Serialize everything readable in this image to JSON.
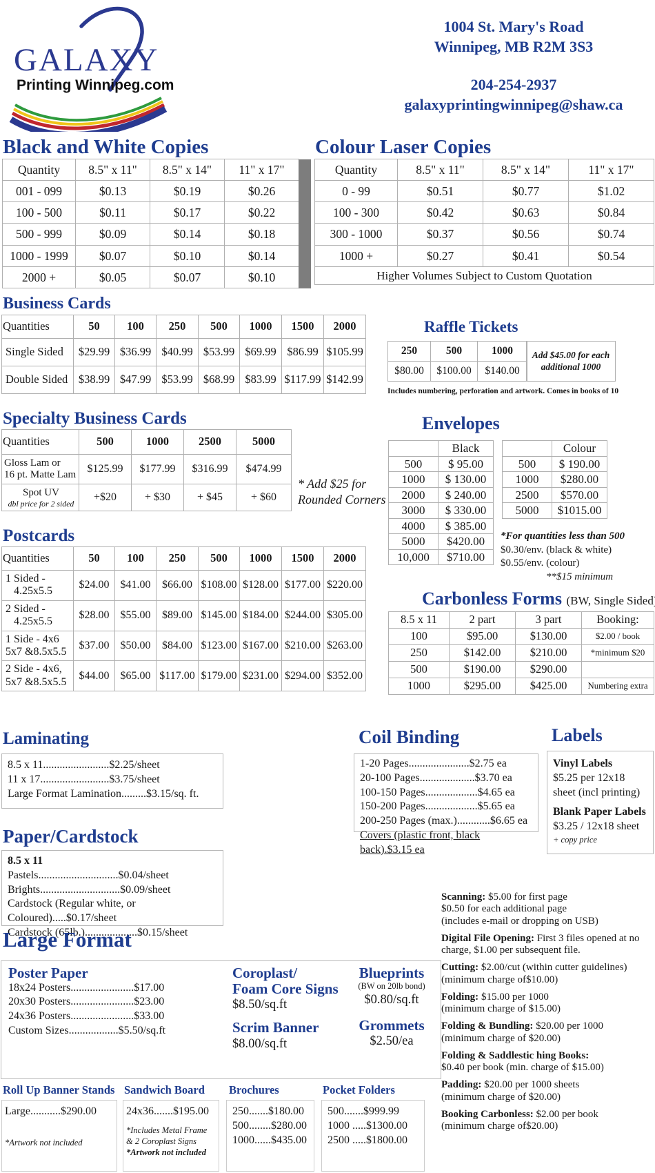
{
  "colors": {
    "accent": "#1f3d8f",
    "logo_blue": "#2b3990",
    "divider_gray": "#7d7d7d"
  },
  "header": {
    "logo_line1": "GALAXY",
    "logo_line2": "Printing Winnipeg.com",
    "address1": "1004 St. Mary's Road",
    "address2": "Winnipeg, MB R2M 3S3",
    "phone": "204-254-2937",
    "email": "galaxyprintingwinnipeg@shaw.ca"
  },
  "bw_copies": {
    "title": "Black and White Copies",
    "rows": [
      [
        "Quantity",
        "8.5\" x 11\"",
        "8.5\" x 14\"",
        "11\" x 17\""
      ],
      [
        "001 - 099",
        "$0.13",
        "$0.19",
        "$0.26"
      ],
      [
        "100 - 500",
        "$0.11",
        "$0.17",
        "$0.22"
      ],
      [
        "500 - 999",
        "$0.09",
        "$0.14",
        "$0.18"
      ],
      [
        "1000 - 1999",
        "$0.07",
        "$0.10",
        "$0.14"
      ],
      [
        "2000 +",
        "$0.05",
        "$0.07",
        "$0.10"
      ]
    ]
  },
  "colour_copies": {
    "title": "Colour Laser Copies",
    "rows": [
      [
        "Quantity",
        "8.5\" x 11\"",
        "8.5\" x 14\"",
        "11\" x 17\""
      ],
      [
        "0 - 99",
        "$0.51",
        "$0.77",
        "$1.02"
      ],
      [
        "100 - 300",
        "$0.42",
        "$0.63",
        "$0.84"
      ],
      [
        "300 - 1000",
        "$0.37",
        "$0.56",
        "$0.74"
      ],
      [
        "1000 +",
        "$0.27",
        "$0.41",
        "$0.54"
      ]
    ],
    "footer": "Higher Volumes Subject to Custom Quotation"
  },
  "business_cards": {
    "title": "Business Cards",
    "rows": [
      [
        "Quantities",
        "50",
        "100",
        "250",
        "500",
        "1000",
        "1500",
        "2000"
      ],
      [
        "Single Sided",
        "$29.99",
        "$36.99",
        "$40.99",
        "$53.99",
        "$69.99",
        "$86.99",
        "$105.99"
      ],
      [
        "Double Sided",
        "$38.99",
        "$47.99",
        "$53.99",
        "$68.99",
        "$83.99",
        "$117.99",
        "$142.99"
      ]
    ]
  },
  "raffle_tickets": {
    "title": "Raffle Tickets",
    "rows": [
      [
        "250",
        "500",
        "1000"
      ],
      [
        "$80.00",
        "$100.00",
        "$140.00"
      ]
    ],
    "side_note_line1": "Add $45.00 for each",
    "side_note_line2": "additional 1000",
    "foot_note": "Includes numbering, perforation and artwork. Comes in books of 10"
  },
  "specialty_cards": {
    "title": "Specialty Business Cards",
    "rows": [
      [
        "Quantities",
        "500",
        "1000",
        "2500",
        "5000"
      ],
      [
        {
          "lines": [
            "Gloss Lam or",
            "16 pt. Matte Lam"
          ]
        },
        "$125.99",
        "$177.99",
        "$316.99",
        "$474.99"
      ],
      [
        {
          "lines": [
            "Spot UV",
            "dbl price for 2 sided"
          ],
          "italicLast": true,
          "align": "center"
        },
        "+$20",
        "+ $30",
        "+ $45",
        "+ $60"
      ]
    ],
    "note_line1": "* Add $25 for",
    "note_line2": "Rounded Corners"
  },
  "envelopes": {
    "title": "Envelopes",
    "black_rows": [
      [
        "",
        "Black"
      ],
      [
        "500",
        "$ 95.00"
      ],
      [
        "1000",
        "$ 130.00"
      ],
      [
        "2000",
        "$ 240.00"
      ],
      [
        "3000",
        "$ 330.00"
      ],
      [
        "4000",
        "$ 385.00"
      ],
      [
        "5000",
        "$420.00"
      ],
      [
        "10,000",
        "$710.00"
      ]
    ],
    "colour_rows": [
      [
        "",
        "Colour"
      ],
      [
        "500",
        "$ 190.00"
      ],
      [
        "1000",
        "$280.00"
      ],
      [
        "2500",
        "$570.00"
      ],
      [
        "5000",
        "$1015.00"
      ]
    ],
    "notes": [
      {
        "text": "*For quantities less than 500",
        "cls": "bi"
      },
      {
        "text": "$0.30/env. (black & white)"
      },
      {
        "text": "$0.55/env. (colour)"
      },
      {
        "text": "**$15 minimum",
        "cls": "i ind"
      }
    ]
  },
  "postcards": {
    "title": "Postcards",
    "rows": [
      [
        "Quantities",
        "50",
        "100",
        "250",
        "500",
        "1000",
        "1500",
        "2000"
      ],
      [
        {
          "lines": [
            "1 Sided -",
            "   4.25x5.5"
          ]
        },
        "$24.00",
        "$41.00",
        "$66.00",
        "$108.00",
        "$128.00",
        "$177.00",
        "$220.00"
      ],
      [
        {
          "lines": [
            "2 Sided -",
            "   4.25x5.5"
          ]
        },
        "$28.00",
        "$55.00",
        "$89.00",
        "$145.00",
        "$184.00",
        "$244.00",
        "$305.00"
      ],
      [
        {
          "lines": [
            "1 Side - 4x6",
            "5x7 &8.5x5.5"
          ]
        },
        "$37.00",
        "$50.00",
        "$84.00",
        "$123.00",
        "$167.00",
        "$210.00",
        "$263.00"
      ],
      [
        {
          "lines": [
            "2 Side - 4x6,",
            "5x7 &8.5x5.5"
          ]
        },
        "$44.00",
        "$65.00",
        "$117.00",
        "$179.00",
        "$231.00",
        "$294.00",
        "$352.00"
      ]
    ]
  },
  "carbonless": {
    "title": "Carbonless Forms",
    "subtitle": "(BW, Single Sided)",
    "rows": [
      [
        "8.5 x 11",
        "2 part",
        "3 part",
        "Booking:"
      ],
      [
        "100",
        "$95.00",
        "$130.00",
        "$2.00 / book"
      ],
      [
        "250",
        "$142.00",
        "$210.00",
        "*minimum $20"
      ],
      [
        "500",
        "$190.00",
        "$290.00",
        ""
      ],
      [
        "1000",
        "$295.00",
        "$425.00",
        "Numbering extra"
      ]
    ]
  },
  "laminating": {
    "title": "Laminating",
    "lines": [
      "8.5 x 11........................$2.25/sheet",
      "11 x 17.........................$3.75/sheet",
      "Large Format Lamination.........$3.15/sq. ft."
    ]
  },
  "coil_binding": {
    "title": "Coil Binding",
    "lines": [
      "1-20 Pages......................$2.75 ea",
      "20-100 Pages....................$3.70 ea",
      "100-150 Pages...................$4.65 ea",
      "150-200 Pages...................$5.65 ea",
      "200-250 Pages (max.)............$6.65 ea",
      {
        "text": "Covers (plastic front, black back).$3.15 ea",
        "cls": "u"
      }
    ]
  },
  "labels": {
    "title": "Labels",
    "lines": [
      {
        "text": "Vinyl Labels",
        "cls": "b"
      },
      {
        "text": "$5.25 per 12x18 sheet (incl printing)"
      },
      {
        "text": "Blank Paper Labels",
        "cls": "b mt"
      },
      {
        "text": "$3.25 / 12x18 sheet"
      },
      {
        "text": "+ copy price",
        "cls": "i sm"
      }
    ]
  },
  "paper_cardstock": {
    "title": "Paper/Cardstock",
    "lines": [
      {
        "text": "8.5 x 11",
        "cls": "b"
      },
      "Pastels.............................$0.04/sheet",
      "Brights.............................$0.09/sheet",
      "Cardstock (Regular white, or Coloured).....$0.17/sheet",
      "Cardstock (65lb.)...................$0.15/sheet"
    ]
  },
  "services": [
    {
      "title": "Scanning:",
      "text": "$5.00 for first page\n$0.50 for each additional page\n(includes e-mail or dropping on USB)"
    },
    {
      "title": "Digital File Opening:",
      "text": "First 3 files opened at no charge, $1.00 per subsequent file."
    },
    {
      "title": "Cutting:",
      "text": "$2.00/cut (within cutter guidelines)\n(minimum charge of$10.00)"
    },
    {
      "title": "Folding:",
      "text": "$15.00 per 1000\n(minimum charge of $15.00)"
    },
    {
      "title": "Folding & Bundling:",
      "text": "$20.00 per 1000\n(minimum charge of $20.00)"
    },
    {
      "title": "Folding & Saddlestic hing Books:",
      "text": "\n$0.40 per book (min. charge of $15.00)"
    },
    {
      "title": "Padding:",
      "text": "$20.00 per 1000 sheets\n(minimum charge of $20.00)"
    },
    {
      "title": "Booking Carbonless:",
      "text": "$2.00 per book\n(minimum charge of$20.00)"
    }
  ],
  "large_format": {
    "title": "Large Format",
    "poster": {
      "title": "Poster Paper",
      "lines": [
        "18x24 Posters.......................$17.00",
        "20x30 Posters.......................$23.00",
        "24x36 Posters.......................$33.00",
        "Custom Sizes..................$5.50/sq.ft"
      ]
    },
    "coroplast": {
      "title_line1": "Coroplast/",
      "title_line2": "Foam Core Signs",
      "price": "$8.50/sq.ft"
    },
    "scrim": {
      "title": "Scrim Banner",
      "price": "$8.00/sq.ft"
    },
    "blueprints": {
      "title": "Blueprints",
      "subtitle": "(BW on 20lb bond)",
      "price": "$0.80/sq.ft"
    },
    "grommets": {
      "title": "Grommets",
      "price": "$2.50/ea"
    }
  },
  "bottom": {
    "banner": {
      "title": "Roll Up Banner Stands",
      "lines": [
        {
          "text": "Large...........$290.00"
        },
        {
          "text": "*Artwork not included",
          "cls": "i sm mt18"
        }
      ]
    },
    "sandwich": {
      "title": "Sandwich Board",
      "lines": [
        {
          "text": "24x36.......$195.00"
        },
        {
          "text": "*Includes Metal Frame",
          "cls": "i sm mt"
        },
        {
          "text": "& 2 Coroplast Signs",
          "cls": "i sm"
        },
        {
          "text": "*Artwork not included",
          "cls": "bi sm"
        }
      ]
    },
    "brochures": {
      "title": "Brochures",
      "lines": [
        "250.......$180.00",
        "500........$280.00",
        "1000......$435.00"
      ]
    },
    "pocket": {
      "title": "Pocket Folders",
      "lines": [
        "500.......$999.99",
        "1000 .....$1300.00",
        "2500 .....$1800.00"
      ]
    }
  }
}
